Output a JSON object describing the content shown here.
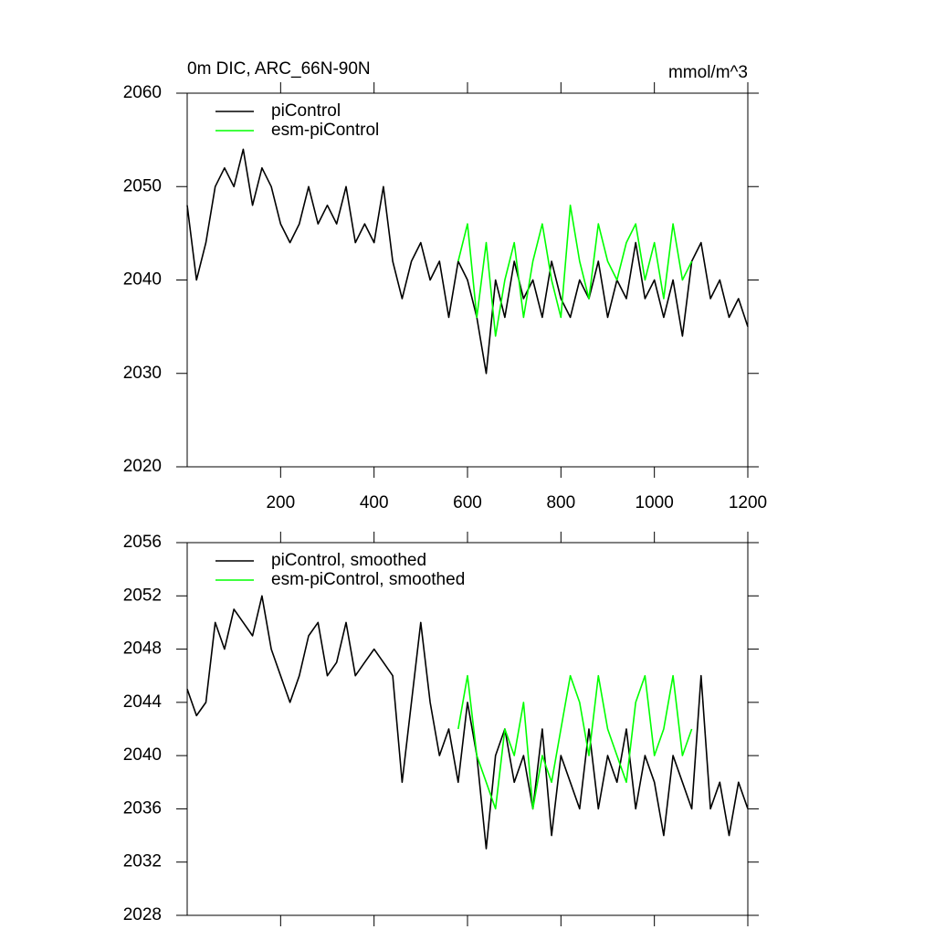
{
  "chart_data": [
    {
      "type": "line",
      "title": "0m DIC, ARC_66N-90N",
      "units": "mmol/m^3",
      "xlim": [
        0,
        1200
      ],
      "xticks": [
        200,
        400,
        600,
        800,
        1000,
        1200
      ],
      "ylim": [
        2020,
        2060
      ],
      "yticks": [
        2020,
        2030,
        2040,
        2050,
        2060
      ],
      "series": [
        {
          "name": "piControl",
          "color": "#000000",
          "x": [
            0,
            20,
            40,
            60,
            80,
            100,
            120,
            140,
            160,
            180,
            200,
            220,
            240,
            260,
            280,
            300,
            320,
            340,
            360,
            380,
            400,
            420,
            440,
            460,
            480,
            500,
            520,
            540,
            560,
            580,
            600,
            620,
            640,
            660,
            680,
            700,
            720,
            740,
            760,
            780,
            800,
            820,
            840,
            860,
            880,
            900,
            920,
            940,
            960,
            980,
            1000,
            1020,
            1040,
            1060,
            1080,
            1100,
            1120,
            1140,
            1160,
            1180,
            1200
          ],
          "values": [
            2048,
            2040,
            2044,
            2050,
            2052,
            2050,
            2054,
            2048,
            2052,
            2050,
            2046,
            2044,
            2046,
            2050,
            2046,
            2048,
            2046,
            2050,
            2044,
            2046,
            2044,
            2050,
            2042,
            2038,
            2042,
            2044,
            2040,
            2042,
            2036,
            2042,
            2040,
            2036,
            2030,
            2040,
            2036,
            2042,
            2038,
            2040,
            2036,
            2042,
            2038,
            2036,
            2040,
            2038,
            2042,
            2036,
            2040,
            2038,
            2044,
            2038,
            2040,
            2036,
            2040,
            2034,
            2042,
            2044,
            2038,
            2040,
            2036,
            2038,
            2035
          ]
        },
        {
          "name": "esm-piControl",
          "color": "#00ff00",
          "x": [
            580,
            600,
            620,
            640,
            660,
            680,
            700,
            720,
            740,
            760,
            780,
            800,
            820,
            840,
            860,
            880,
            900,
            920,
            940,
            960,
            980,
            1000,
            1020,
            1040,
            1060,
            1080
          ],
          "values": [
            2042,
            2046,
            2036,
            2044,
            2034,
            2040,
            2044,
            2036,
            2042,
            2046,
            2040,
            2036,
            2048,
            2042,
            2038,
            2046,
            2042,
            2040,
            2044,
            2046,
            2040,
            2044,
            2038,
            2046,
            2040,
            2042
          ]
        }
      ]
    },
    {
      "type": "line",
      "xlim": [
        0,
        1200
      ],
      "ylim": [
        2028,
        2056
      ],
      "yticks": [
        2028,
        2032,
        2036,
        2040,
        2044,
        2048,
        2052,
        2056
      ],
      "series": [
        {
          "name": "piControl, smoothed",
          "color": "#000000",
          "x": [
            0,
            20,
            40,
            60,
            80,
            100,
            120,
            140,
            160,
            180,
            200,
            220,
            240,
            260,
            280,
            300,
            320,
            340,
            360,
            380,
            400,
            420,
            440,
            460,
            480,
            500,
            520,
            540,
            560,
            580,
            600,
            620,
            640,
            660,
            680,
            700,
            720,
            740,
            760,
            780,
            800,
            820,
            840,
            860,
            880,
            900,
            920,
            940,
            960,
            980,
            1000,
            1020,
            1040,
            1060,
            1080,
            1100,
            1120,
            1140,
            1160,
            1180,
            1200
          ],
          "values": [
            2045,
            2043,
            2044,
            2050,
            2048,
            2051,
            2050,
            2049,
            2052,
            2048,
            2046,
            2044,
            2046,
            2049,
            2050,
            2046,
            2047,
            2050,
            2046,
            2047,
            2048,
            2047,
            2046,
            2038,
            2044,
            2050,
            2044,
            2040,
            2042,
            2038,
            2044,
            2040,
            2033,
            2040,
            2042,
            2038,
            2040,
            2036,
            2042,
            2034,
            2040,
            2038,
            2036,
            2042,
            2036,
            2040,
            2038,
            2042,
            2036,
            2040,
            2038,
            2034,
            2040,
            2038,
            2036,
            2046,
            2036,
            2038,
            2034,
            2038,
            2036
          ]
        },
        {
          "name": "esm-piControl, smoothed",
          "color": "#00ff00",
          "x": [
            580,
            600,
            620,
            640,
            660,
            680,
            700,
            720,
            740,
            760,
            780,
            800,
            820,
            840,
            860,
            880,
            900,
            920,
            940,
            960,
            980,
            1000,
            1020,
            1040,
            1060,
            1080
          ],
          "values": [
            2042,
            2046,
            2040,
            2038,
            2036,
            2042,
            2040,
            2044,
            2036,
            2040,
            2038,
            2042,
            2046,
            2044,
            2040,
            2046,
            2042,
            2040,
            2038,
            2044,
            2046,
            2040,
            2042,
            2046,
            2040,
            2042
          ]
        }
      ]
    }
  ]
}
